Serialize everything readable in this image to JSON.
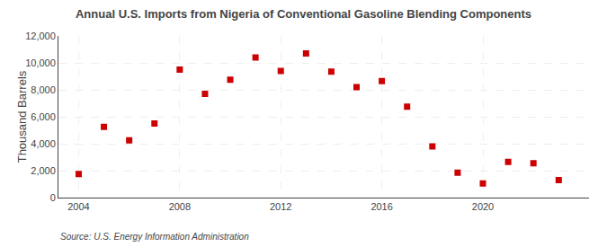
{
  "chart_data": {
    "type": "scatter",
    "title": "Annual U.S. Imports from Nigeria of Conventional Gasoline Blending Components",
    "ylabel": "Thousand Barrels",
    "annotations": [
      "Source: U.S. Energy Information Administration"
    ],
    "x": [
      2004,
      2005,
      2006,
      2007,
      2008,
      2009,
      2010,
      2011,
      2012,
      2013,
      2014,
      2015,
      2016,
      2017,
      2018,
      2019,
      2020,
      2021,
      2022,
      2023
    ],
    "values": [
      1750,
      5250,
      4250,
      5500,
      9500,
      7700,
      8750,
      10400,
      9400,
      10700,
      9350,
      8200,
      8650,
      6750,
      3800,
      1850,
      1050,
      2650,
      2550,
      1300
    ],
    "color": "#cc0000",
    "marker": "square",
    "xlim": [
      2003.2,
      2024.2
    ],
    "xticks": [
      2004,
      2008,
      2012,
      2016,
      2020
    ],
    "ylim": [
      0,
      12000
    ],
    "yticks": [
      0,
      {
        "value": 2000,
        "label": "2,000"
      },
      {
        "value": 4000,
        "label": "4,000"
      },
      {
        "value": 6000,
        "label": "6,000"
      },
      {
        "value": 8000,
        "label": "8,000"
      },
      {
        "value": 10000,
        "label": "10,000"
      },
      {
        "value": 12000,
        "label": "12,000"
      }
    ],
    "grid": true
  }
}
